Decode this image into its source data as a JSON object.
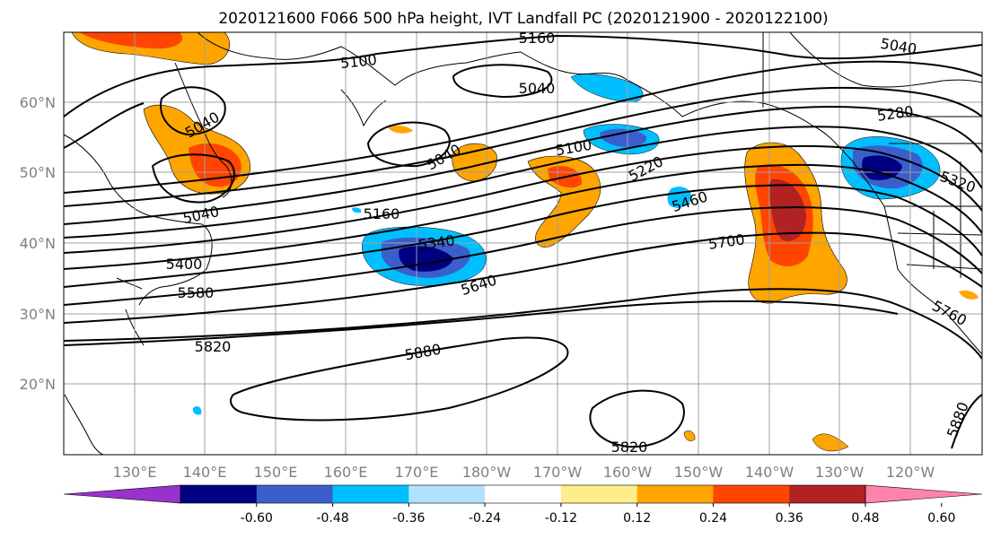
{
  "title": "2020121600 F066 500 hPa height, IVT Landfall PC (2020121900 - 2020122100)",
  "map": {
    "lon_ticks": [
      {
        "label": "130°E"
      },
      {
        "label": "140°E"
      },
      {
        "label": "150°E"
      },
      {
        "label": "160°E"
      },
      {
        "label": "170°E"
      },
      {
        "label": "180°W"
      },
      {
        "label": "170°W"
      },
      {
        "label": "160°W"
      },
      {
        "label": "150°W"
      },
      {
        "label": "140°W"
      },
      {
        "label": "130°W"
      },
      {
        "label": "120°W"
      }
    ],
    "lat_ticks": [
      {
        "label": "60°N"
      },
      {
        "label": "50°N"
      },
      {
        "label": "40°N"
      },
      {
        "label": "30°N"
      },
      {
        "label": "20°N"
      }
    ],
    "grid": true,
    "contour_labels": [
      "5160",
      "5040",
      "5100",
      "5040",
      "5040",
      "5040",
      "5040",
      "5100",
      "5220",
      "5280",
      "5160",
      "5340",
      "5400",
      "5460",
      "5580",
      "5640",
      "5700",
      "5320",
      "5760",
      "5820",
      "5880",
      "5820",
      "5880"
    ]
  },
  "colorbar": {
    "ticks": [
      "-0.60",
      "-0.48",
      "-0.36",
      "-0.24",
      "-0.12",
      "0.12",
      "0.24",
      "0.36",
      "0.48",
      "0.60"
    ],
    "colors": [
      "#9932cc",
      "#000080",
      "#3a5fcd",
      "#00bfff",
      "#b0e2ff",
      "#ffffff",
      "#ffec8b",
      "#ffa500",
      "#ff4500",
      "#b22222",
      "#ff82ab"
    ],
    "extend": "both"
  },
  "colors": {
    "neg_strong": "#000080",
    "neg_mid": "#3a5fcd",
    "neg_light": "#00bfff",
    "pos_light": "#ffec8b",
    "pos_mid": "#ffa500",
    "pos_strong": "#ff4500",
    "pos_max": "#b22222",
    "grid": "#a0a0a0"
  }
}
